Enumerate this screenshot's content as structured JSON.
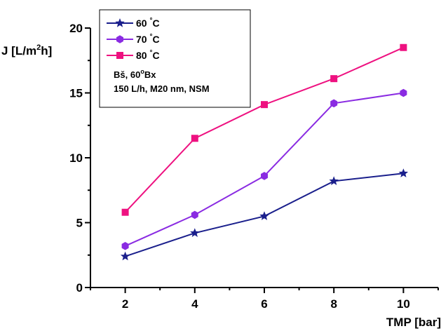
{
  "chart_data": {
    "type": "line",
    "xlabel": "TMP [bar]",
    "ylabel_main": "J [L/m",
    "ylabel_sup": "2",
    "ylabel_tail": "h]",
    "x": [
      2,
      4,
      6,
      8,
      10
    ],
    "xlim": [
      1,
      11
    ],
    "ylim": [
      0,
      20
    ],
    "x_ticks": [
      2,
      4,
      6,
      8,
      10
    ],
    "y_ticks": [
      0,
      5,
      10,
      15,
      20
    ],
    "grid": false,
    "legend_position": "top-left",
    "series": [
      {
        "name": "60 °C",
        "name_num": "60",
        "name_unit": "C",
        "marker": "star",
        "color": "#1a1f8c",
        "values": [
          2.4,
          4.2,
          5.5,
          8.2,
          8.8
        ]
      },
      {
        "name": "70 °C",
        "name_num": "70",
        "name_unit": "C",
        "marker": "hexagon",
        "color": "#8a2be2",
        "values": [
          3.2,
          5.6,
          8.6,
          14.2,
          15.0
        ]
      },
      {
        "name": "80 °C",
        "name_num": "80",
        "name_unit": "C",
        "marker": "square",
        "color": "#ee1180",
        "values": [
          5.8,
          11.5,
          14.1,
          16.1,
          18.5
        ]
      }
    ],
    "annotation_line1_a": "Bš, 60",
    "annotation_line1_sup": "o",
    "annotation_line1_b": "Bx",
    "annotation_line2": "150 L/h, M20 nm, NSM"
  }
}
